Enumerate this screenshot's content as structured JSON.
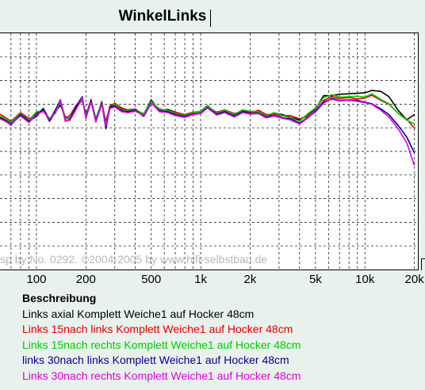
{
  "window": {
    "title": "WinkelLinks"
  },
  "watermark": "sp by No. 0292. ©2004-2005 by www.hifi-selbstbau.de",
  "legend_title": "Beschreibung",
  "chart_data": {
    "type": "line",
    "title": "WinkelLinks",
    "x_scale": "log",
    "xlim": [
      60,
      21000
    ],
    "ylim": [
      -35,
      15
    ],
    "grid": true,
    "x_ticks": [
      "100",
      "200",
      "500",
      "1k",
      "2k",
      "5k",
      "10k",
      "20k"
    ],
    "x_tick_values": [
      100,
      200,
      500,
      1000,
      2000,
      5000,
      10000,
      20000
    ],
    "series": [
      {
        "name": "Links axial Komplett Weiche1 auf Hocker 48cm",
        "color": "#000000",
        "x": [
          60,
          70,
          80,
          90,
          100,
          110,
          120,
          130,
          140,
          150,
          160,
          175,
          190,
          200,
          215,
          230,
          250,
          265,
          280,
          300,
          330,
          360,
          400,
          450,
          500,
          560,
          630,
          700,
          800,
          900,
          1000,
          1100,
          1250,
          1400,
          1600,
          1800,
          2000,
          2250,
          2500,
          2800,
          3150,
          3500,
          4000,
          4500,
          5000,
          5600,
          6300,
          7000,
          8000,
          9000,
          10000,
          11000,
          12500,
          14000,
          16000,
          18000,
          20000
        ],
        "y": [
          -2.8,
          -4.0,
          -2.3,
          -3.8,
          -2.0,
          -1.1,
          -3.6,
          -1.7,
          -0.2,
          -2.7,
          -3.0,
          -0.6,
          0.8,
          -2.1,
          0.6,
          -3.3,
          0.2,
          -3.7,
          -0.5,
          -0.2,
          -1.0,
          -1.6,
          -1.3,
          -2.1,
          0.9,
          -1.4,
          -1.1,
          -1.7,
          -2.6,
          -1.8,
          -1.5,
          -0.3,
          -2.0,
          -1.5,
          -2.4,
          -1.4,
          -1.7,
          -1.6,
          -2.8,
          -1.9,
          -2.2,
          -2.8,
          -3.3,
          -2.2,
          -1.0,
          1.8,
          1.8,
          2.1,
          2.2,
          2.3,
          2.4,
          2.9,
          2.7,
          1.6,
          -1.4,
          -3.3,
          -2.2
        ]
      },
      {
        "name": "Links 15nach links Komplett Weiche1 auf Hocker 48cm",
        "color": "#e00000",
        "x": [
          60,
          70,
          80,
          90,
          100,
          110,
          120,
          130,
          140,
          150,
          160,
          175,
          190,
          200,
          215,
          230,
          250,
          265,
          280,
          300,
          330,
          360,
          400,
          450,
          500,
          560,
          630,
          700,
          800,
          900,
          1000,
          1100,
          1250,
          1400,
          1600,
          1800,
          2000,
          2250,
          2500,
          2800,
          3150,
          3500,
          4000,
          4500,
          5000,
          5600,
          6300,
          7000,
          8000,
          9000,
          10000,
          11000,
          12500,
          14000,
          16000,
          18000,
          20000
        ],
        "y": [
          -2.1,
          -3.6,
          -1.8,
          -3.0,
          -2.6,
          -0.9,
          -3.2,
          -1.6,
          0.6,
          -2.9,
          -2.4,
          -0.2,
          1.2,
          -2.6,
          1.0,
          -3.4,
          0.6,
          -4.1,
          -0.4,
          0.2,
          -0.8,
          -1.2,
          -1.0,
          -2.3,
          0.4,
          -1.0,
          -1.4,
          -1.7,
          -2.2,
          -1.7,
          -1.6,
          -0.6,
          -1.7,
          -1.2,
          -2.0,
          -1.5,
          -1.8,
          -1.3,
          -2.2,
          -2.1,
          -2.5,
          -2.4,
          -3.1,
          -2.6,
          -1.4,
          0.8,
          1.6,
          1.2,
          1.4,
          1.1,
          1.3,
          1.9,
          0.8,
          0.0,
          -2.0,
          -3.2,
          -5.1
        ]
      },
      {
        "name": "Links 15nach rechts Komplett Weiche1 auf Hocker 48cm",
        "color": "#00cc00",
        "x": [
          60,
          70,
          80,
          90,
          100,
          110,
          120,
          130,
          140,
          150,
          160,
          175,
          190,
          200,
          215,
          230,
          250,
          265,
          280,
          300,
          330,
          360,
          400,
          450,
          500,
          560,
          630,
          700,
          800,
          900,
          1000,
          1100,
          1250,
          1400,
          1600,
          1800,
          2000,
          2250,
          2500,
          2800,
          3150,
          3500,
          4000,
          4500,
          5000,
          5600,
          6300,
          7000,
          8000,
          9000,
          10000,
          11000,
          12500,
          14000,
          16000,
          18000,
          20000
        ],
        "y": [
          -2.5,
          -3.8,
          -2.0,
          -3.4,
          -1.6,
          -1.4,
          -3.0,
          -2.0,
          0.4,
          -3.2,
          -2.8,
          -0.9,
          1.0,
          -2.4,
          0.8,
          -3.0,
          0.4,
          -4.4,
          -0.8,
          0.0,
          -1.2,
          -1.4,
          -1.2,
          -2.0,
          0.6,
          -1.2,
          -1.3,
          -2.0,
          -2.4,
          -1.9,
          -1.5,
          -0.4,
          -1.9,
          -1.3,
          -2.2,
          -1.2,
          -1.5,
          -1.6,
          -2.5,
          -1.8,
          -2.4,
          -2.9,
          -3.6,
          -2.0,
          -0.8,
          1.4,
          2.0,
          1.5,
          1.6,
          1.7,
          1.5,
          2.2,
          1.0,
          0.1,
          -2.0,
          -3.4,
          -4.2
        ]
      },
      {
        "name": "links 30nach links Komplett Weiche1 auf Hocker 48cm",
        "color": "#000090",
        "x": [
          60,
          70,
          80,
          90,
          100,
          110,
          120,
          130,
          140,
          150,
          160,
          175,
          190,
          200,
          215,
          230,
          250,
          265,
          280,
          300,
          330,
          360,
          400,
          450,
          500,
          560,
          630,
          700,
          800,
          900,
          1000,
          1100,
          1250,
          1400,
          1600,
          1800,
          2000,
          2250,
          2500,
          2800,
          3150,
          3500,
          4000,
          4500,
          5000,
          5600,
          6300,
          7000,
          8000,
          9000,
          10000,
          11000,
          12500,
          14000,
          16000,
          18000,
          20000
        ],
        "y": [
          -2.9,
          -4.4,
          -2.2,
          -3.6,
          -2.6,
          -0.9,
          -3.5,
          -1.3,
          0.9,
          -3.6,
          -3.2,
          -0.4,
          1.6,
          -2.9,
          0.8,
          -3.6,
          0.2,
          -5.2,
          -0.6,
          -0.4,
          -1.4,
          -1.6,
          -1.3,
          -2.6,
          0.2,
          -1.4,
          -1.6,
          -2.2,
          -2.6,
          -2.1,
          -1.9,
          -0.7,
          -2.1,
          -1.6,
          -2.5,
          -1.6,
          -2.0,
          -1.9,
          -2.7,
          -2.4,
          -2.9,
          -3.1,
          -4.0,
          -2.8,
          -1.6,
          0.3,
          1.2,
          0.8,
          0.9,
          0.8,
          0.4,
          0.1,
          -1.0,
          -2.2,
          -4.6,
          -7.0,
          -10.3
        ]
      },
      {
        "name": "Links 30nach rechts Komplett Weiche1 auf Hocker 48cm",
        "color": "#dd00dd",
        "x": [
          60,
          70,
          80,
          90,
          100,
          110,
          120,
          130,
          140,
          150,
          160,
          175,
          190,
          200,
          215,
          230,
          250,
          265,
          280,
          300,
          330,
          360,
          400,
          450,
          500,
          560,
          630,
          700,
          800,
          900,
          1000,
          1100,
          1250,
          1400,
          1600,
          1800,
          2000,
          2250,
          2500,
          2800,
          3150,
          3500,
          4000,
          4500,
          5000,
          5600,
          6300,
          7000,
          8000,
          9000,
          10000,
          11000,
          12500,
          14000,
          16000,
          18000,
          20000
        ],
        "y": [
          -3.1,
          -4.2,
          -2.5,
          -3.9,
          -2.2,
          -1.5,
          -3.2,
          -1.8,
          0.7,
          -3.5,
          -3.4,
          -1.0,
          1.4,
          -3.0,
          0.5,
          -3.8,
          0.0,
          -4.6,
          -0.9,
          -0.6,
          -1.6,
          -1.8,
          -1.5,
          -2.4,
          0.3,
          -1.6,
          -1.8,
          -2.4,
          -2.8,
          -2.2,
          -2.0,
          -0.8,
          -2.3,
          -1.8,
          -2.7,
          -1.8,
          -2.1,
          -2.0,
          -2.9,
          -2.5,
          -3.0,
          -3.3,
          -4.2,
          -2.9,
          -1.3,
          0.6,
          1.0,
          0.7,
          0.8,
          0.6,
          0.3,
          0.0,
          -1.3,
          -2.7,
          -5.3,
          -8.2,
          -13.0
        ]
      }
    ]
  }
}
